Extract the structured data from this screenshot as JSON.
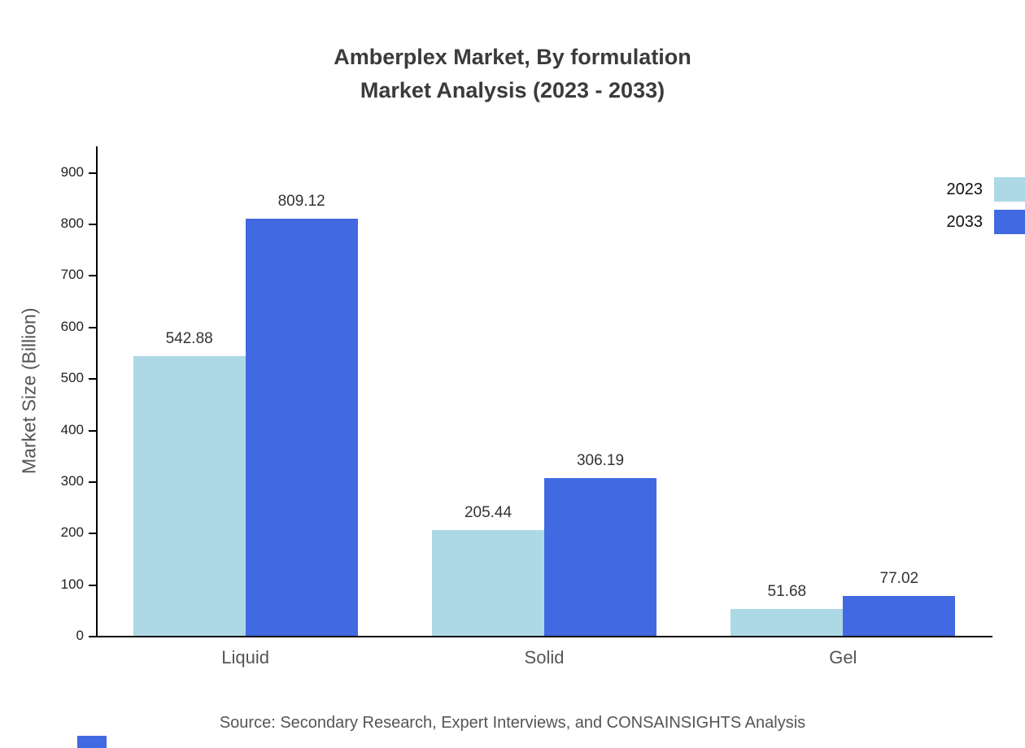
{
  "title": {
    "line1": "Amberplex Market, By formulation",
    "line2": "Market Analysis (2023 - 2033)"
  },
  "chart_data": {
    "type": "bar",
    "categories": [
      "Liquid",
      "Solid",
      "Gel"
    ],
    "series": [
      {
        "name": "2023",
        "color": "#ADD8E6",
        "values": [
          542.88,
          205.44,
          51.68
        ]
      },
      {
        "name": "2033",
        "color": "#4169E1",
        "values": [
          809.12,
          306.19,
          77.02
        ]
      }
    ],
    "title": "Amberplex Market, By formulation Market Analysis (2023 - 2033)",
    "xlabel": "",
    "ylabel": "Market Size (Billion)",
    "ylim": [
      0,
      950
    ],
    "yticks": [
      0,
      100,
      200,
      300,
      400,
      500,
      600,
      700,
      800,
      900
    ],
    "grid": false,
    "legend_position": "top-right"
  },
  "source": "Source: Secondary Research, Expert Interviews, and CONSAINSIGHTS Analysis",
  "colors": {
    "accent_light": "#ADD8E6",
    "accent_dark": "#4169E1",
    "title_text": "#3b3b3b",
    "axis_text": "#555555"
  }
}
